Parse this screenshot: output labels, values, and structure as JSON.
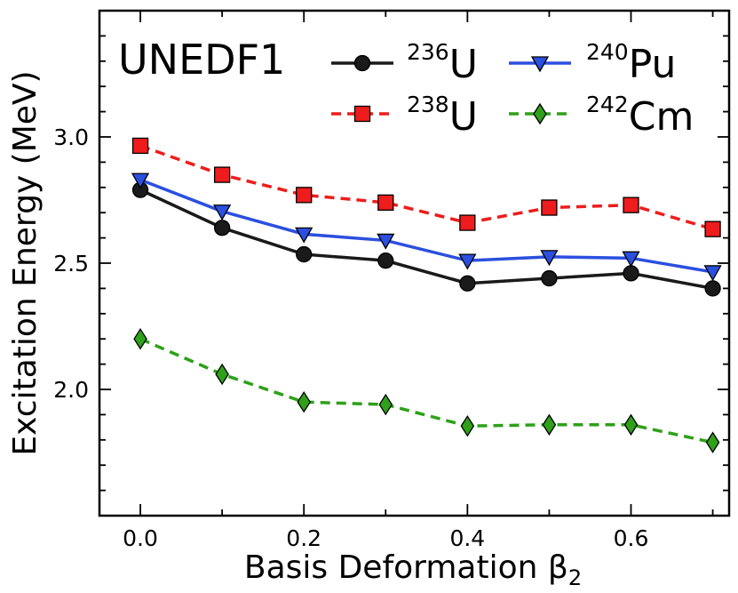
{
  "chart_data": {
    "type": "line",
    "annotation": "UNEDF1",
    "xlabel": "Basis Deformation β",
    "xlabel_subscript": "2",
    "ylabel": "Excitation Energy (MeV)",
    "xlim": [
      -0.05,
      0.72
    ],
    "ylim": [
      1.5,
      3.5
    ],
    "xticks": [
      0.0,
      0.2,
      0.4,
      0.6
    ],
    "xtick_labels": [
      "0.0",
      "0.2",
      "0.4",
      "0.6"
    ],
    "yticks": [
      2.0,
      2.5,
      3.0
    ],
    "ytick_labels": [
      "2.0",
      "2.5",
      "3.0"
    ],
    "x": [
      0.0,
      0.1,
      0.2,
      0.3,
      0.4,
      0.5,
      0.6,
      0.7
    ],
    "series": [
      {
        "name": "236U",
        "mass": "236",
        "element": "U",
        "color": "#1a1a1a",
        "dash": "solid",
        "marker": "circle",
        "values": [
          2.79,
          2.64,
          2.535,
          2.51,
          2.42,
          2.44,
          2.46,
          2.4
        ]
      },
      {
        "name": "240Pu",
        "mass": "240",
        "element": "Pu",
        "color": "#2b4fdf",
        "dash": "solid",
        "marker": "triangle-down",
        "values": [
          2.83,
          2.705,
          2.615,
          2.59,
          2.51,
          2.525,
          2.52,
          2.465
        ]
      },
      {
        "name": "238U",
        "mass": "238",
        "element": "U",
        "color": "#ee1c1c",
        "dash": "dashed",
        "marker": "square",
        "values": [
          2.965,
          2.85,
          2.77,
          2.74,
          2.66,
          2.72,
          2.73,
          2.635
        ]
      },
      {
        "name": "242Cm",
        "mass": "242",
        "element": "Cm",
        "color": "#2ea019",
        "dash": "dashed",
        "marker": "diamond",
        "values": [
          2.2,
          2.06,
          1.95,
          1.94,
          1.855,
          1.86,
          1.86,
          1.79
        ]
      }
    ]
  }
}
